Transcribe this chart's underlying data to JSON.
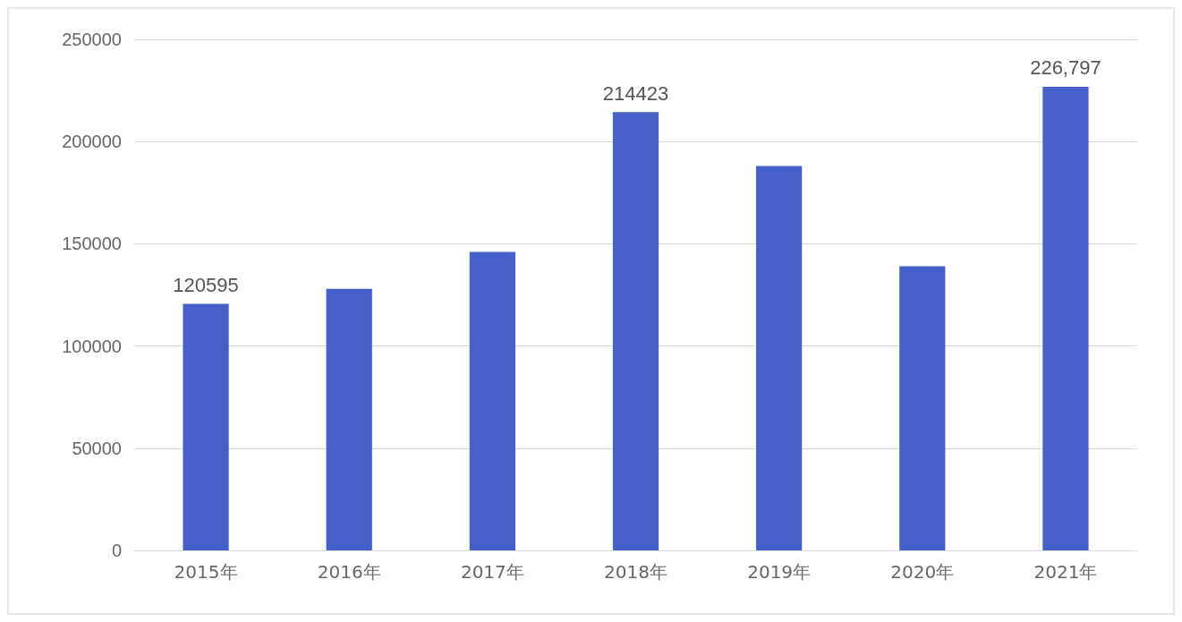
{
  "chart_data": {
    "type": "bar",
    "categories": [
      "2015年",
      "2016年",
      "2017年",
      "2018年",
      "2019年",
      "2020年",
      "2021年"
    ],
    "values": [
      120595,
      128000,
      146000,
      214423,
      188000,
      139000,
      226797
    ],
    "value_labels": [
      "120595",
      null,
      null,
      "214423",
      null,
      null,
      "226,797"
    ],
    "color": "#4561c9",
    "ylim": [
      0,
      250000
    ],
    "yticks": [
      0,
      50000,
      100000,
      150000,
      200000,
      250000
    ],
    "grid": "y"
  }
}
